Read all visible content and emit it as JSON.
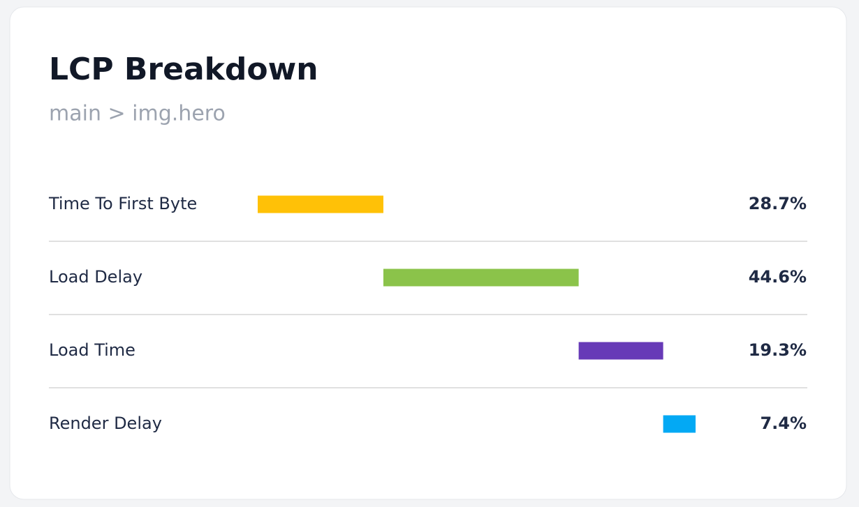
{
  "chart_data": {
    "type": "waterfall",
    "title": "LCP Breakdown",
    "subtitle": "main > img.hero",
    "categories": [
      "Time To First Byte",
      "Load Delay",
      "Load Time",
      "Render Delay"
    ],
    "values": [
      28.7,
      44.6,
      19.3,
      7.4
    ],
    "value_labels": [
      "28.7%",
      "44.6%",
      "19.3%",
      "7.4%"
    ],
    "colors": [
      "#ffc107",
      "#8bc34a",
      "#673ab7",
      "#03a9f4"
    ]
  }
}
